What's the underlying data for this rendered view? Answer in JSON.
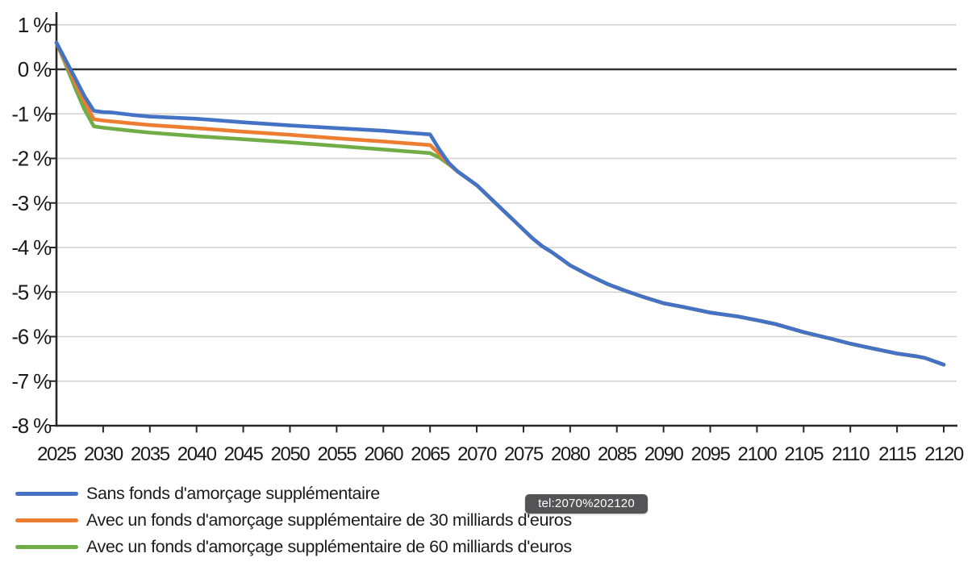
{
  "tooltip": {
    "text": "tel:2070%202120",
    "bg": "#545456",
    "text_color": "#ffffff"
  },
  "chart_data": {
    "type": "line",
    "title": "",
    "xlabel": "",
    "ylabel": "",
    "xlim": [
      2025,
      2120
    ],
    "ylim": [
      -8,
      1
    ],
    "grid": true,
    "legend_position": "bottom-left",
    "axis_color": "#262626",
    "zero_line_color": "#333333",
    "grid_color": "#d2d2d2",
    "x_ticks": [
      2025,
      2030,
      2035,
      2040,
      2045,
      2050,
      2055,
      2060,
      2065,
      2070,
      2075,
      2080,
      2085,
      2090,
      2095,
      2100,
      2105,
      2110,
      2115,
      2120
    ],
    "y_ticks": [
      {
        "v": 1,
        "label": "1 %"
      },
      {
        "v": 0,
        "label": "0 %"
      },
      {
        "v": -1,
        "label": "-1 %"
      },
      {
        "v": -2,
        "label": "-2 %"
      },
      {
        "v": -3,
        "label": "-3 %"
      },
      {
        "v": -4,
        "label": "-4 %"
      },
      {
        "v": -5,
        "label": "-5 %"
      },
      {
        "v": -6,
        "label": "-6 %"
      },
      {
        "v": -7,
        "label": "-7 %"
      },
      {
        "v": -8,
        "label": "-8 %"
      }
    ],
    "series": [
      {
        "name": "Sans fonds d'amorçage supplémentaire",
        "color": "#4472C4",
        "points": [
          [
            2025,
            0.6
          ],
          [
            2026,
            0.2
          ],
          [
            2027,
            -0.2
          ],
          [
            2028,
            -0.6
          ],
          [
            2029,
            -0.93
          ],
          [
            2030,
            -0.96
          ],
          [
            2031,
            -0.97
          ],
          [
            2033,
            -1.02
          ],
          [
            2035,
            -1.06
          ],
          [
            2040,
            -1.11
          ],
          [
            2045,
            -1.19
          ],
          [
            2050,
            -1.26
          ],
          [
            2055,
            -1.32
          ],
          [
            2060,
            -1.38
          ],
          [
            2063,
            -1.43
          ],
          [
            2065,
            -1.46
          ],
          [
            2066,
            -1.8
          ],
          [
            2067,
            -2.1
          ],
          [
            2068,
            -2.3
          ],
          [
            2069,
            -2.45
          ],
          [
            2070,
            -2.6
          ],
          [
            2071,
            -2.8
          ],
          [
            2072,
            -3.0
          ],
          [
            2073,
            -3.2
          ],
          [
            2074,
            -3.4
          ],
          [
            2075,
            -3.6
          ],
          [
            2076,
            -3.8
          ],
          [
            2077,
            -3.97
          ],
          [
            2078,
            -4.1
          ],
          [
            2079,
            -4.25
          ],
          [
            2080,
            -4.4
          ],
          [
            2081,
            -4.51
          ],
          [
            2082,
            -4.62
          ],
          [
            2083,
            -4.72
          ],
          [
            2084,
            -4.82
          ],
          [
            2085,
            -4.9
          ],
          [
            2086,
            -4.98
          ],
          [
            2087,
            -5.05
          ],
          [
            2088,
            -5.12
          ],
          [
            2090,
            -5.25
          ],
          [
            2092,
            -5.33
          ],
          [
            2095,
            -5.46
          ],
          [
            2098,
            -5.55
          ],
          [
            2100,
            -5.63
          ],
          [
            2102,
            -5.72
          ],
          [
            2105,
            -5.9
          ],
          [
            2108,
            -6.05
          ],
          [
            2110,
            -6.16
          ],
          [
            2112,
            -6.25
          ],
          [
            2115,
            -6.38
          ],
          [
            2117,
            -6.44
          ],
          [
            2118,
            -6.48
          ],
          [
            2120,
            -6.63
          ]
        ]
      },
      {
        "name": "Avec un fonds d'amorçage supplémentaire de 30 milliards d'euros",
        "color": "#ED7D31",
        "points": [
          [
            2025,
            0.6
          ],
          [
            2026,
            0.15
          ],
          [
            2027,
            -0.3
          ],
          [
            2028,
            -0.72
          ],
          [
            2029,
            -1.12
          ],
          [
            2030,
            -1.15
          ],
          [
            2033,
            -1.21
          ],
          [
            2035,
            -1.25
          ],
          [
            2040,
            -1.32
          ],
          [
            2045,
            -1.4
          ],
          [
            2050,
            -1.47
          ],
          [
            2055,
            -1.55
          ],
          [
            2060,
            -1.62
          ],
          [
            2065,
            -1.7
          ],
          [
            2066,
            -1.9
          ],
          [
            2067,
            -2.12
          ],
          [
            2068,
            -2.3
          ],
          [
            2069,
            -2.45
          ],
          [
            2070,
            -2.6
          ],
          [
            2071,
            -2.8
          ],
          [
            2072,
            -3.0
          ],
          [
            2073,
            -3.2
          ],
          [
            2074,
            -3.4
          ],
          [
            2075,
            -3.6
          ],
          [
            2076,
            -3.8
          ],
          [
            2077,
            -3.97
          ],
          [
            2078,
            -4.1
          ],
          [
            2079,
            -4.25
          ],
          [
            2080,
            -4.4
          ],
          [
            2081,
            -4.51
          ],
          [
            2082,
            -4.62
          ],
          [
            2083,
            -4.72
          ],
          [
            2084,
            -4.82
          ],
          [
            2085,
            -4.9
          ],
          [
            2086,
            -4.98
          ],
          [
            2087,
            -5.05
          ],
          [
            2088,
            -5.12
          ],
          [
            2090,
            -5.25
          ],
          [
            2092,
            -5.33
          ],
          [
            2095,
            -5.46
          ],
          [
            2098,
            -5.55
          ],
          [
            2100,
            -5.63
          ],
          [
            2102,
            -5.72
          ],
          [
            2105,
            -5.9
          ],
          [
            2108,
            -6.05
          ],
          [
            2110,
            -6.16
          ],
          [
            2112,
            -6.25
          ],
          [
            2115,
            -6.38
          ],
          [
            2117,
            -6.44
          ],
          [
            2118,
            -6.48
          ],
          [
            2120,
            -6.63
          ]
        ]
      },
      {
        "name": "Avec un fonds d'amorçage supplémentaire de 60 milliards d'euros",
        "color": "#70AD47",
        "points": [
          [
            2025,
            0.6
          ],
          [
            2026,
            0.1
          ],
          [
            2027,
            -0.42
          ],
          [
            2028,
            -0.9
          ],
          [
            2029,
            -1.28
          ],
          [
            2030,
            -1.31
          ],
          [
            2033,
            -1.38
          ],
          [
            2035,
            -1.42
          ],
          [
            2040,
            -1.5
          ],
          [
            2045,
            -1.57
          ],
          [
            2050,
            -1.64
          ],
          [
            2055,
            -1.72
          ],
          [
            2060,
            -1.8
          ],
          [
            2065,
            -1.88
          ],
          [
            2066,
            -1.98
          ],
          [
            2067,
            -2.13
          ],
          [
            2068,
            -2.3
          ],
          [
            2069,
            -2.45
          ],
          [
            2070,
            -2.6
          ],
          [
            2071,
            -2.8
          ],
          [
            2072,
            -3.0
          ],
          [
            2073,
            -3.2
          ],
          [
            2074,
            -3.4
          ],
          [
            2075,
            -3.6
          ],
          [
            2076,
            -3.8
          ],
          [
            2077,
            -3.97
          ],
          [
            2078,
            -4.1
          ],
          [
            2079,
            -4.25
          ],
          [
            2080,
            -4.4
          ],
          [
            2081,
            -4.51
          ],
          [
            2082,
            -4.62
          ],
          [
            2083,
            -4.72
          ],
          [
            2084,
            -4.82
          ],
          [
            2085,
            -4.9
          ],
          [
            2086,
            -4.98
          ],
          [
            2087,
            -5.05
          ],
          [
            2088,
            -5.12
          ],
          [
            2090,
            -5.25
          ],
          [
            2092,
            -5.33
          ],
          [
            2095,
            -5.46
          ],
          [
            2098,
            -5.55
          ],
          [
            2100,
            -5.63
          ],
          [
            2102,
            -5.72
          ],
          [
            2105,
            -5.9
          ],
          [
            2108,
            -6.05
          ],
          [
            2110,
            -6.16
          ],
          [
            2112,
            -6.25
          ],
          [
            2115,
            -6.38
          ],
          [
            2117,
            -6.44
          ],
          [
            2118,
            -6.48
          ],
          [
            2120,
            -6.63
          ]
        ]
      }
    ]
  }
}
